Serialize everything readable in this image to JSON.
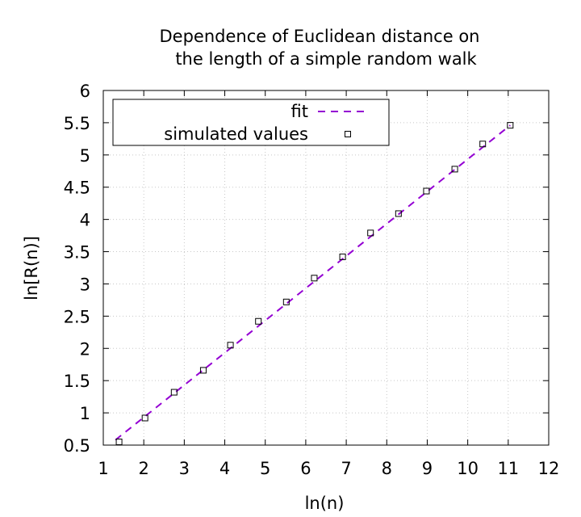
{
  "chart_data": {
    "type": "scatter",
    "title_lines": [
      "Dependence of Euclidean distance on",
      "the length of a simple random walk"
    ],
    "xlabel": "ln(n)",
    "ylabel": "ln[R(n)]",
    "xlim": [
      1,
      12
    ],
    "ylim": [
      0.5,
      6
    ],
    "xticks": [
      "1",
      "2",
      "3",
      "4",
      "5",
      "6",
      "7",
      "8",
      "9",
      "10",
      "11",
      "12"
    ],
    "yticks": [
      "0.5",
      "1",
      "1.5",
      "2",
      "2.5",
      "3",
      "3.5",
      "4",
      "4.5",
      "5",
      "5.5",
      "6"
    ],
    "grid": true,
    "legend_position": "top-left",
    "series": [
      {
        "name": "fit",
        "kind": "line",
        "style": "dashed",
        "color": "#9400d3",
        "x": [
          1.3,
          11.05
        ],
        "y": [
          0.58,
          5.46
        ]
      },
      {
        "name": "simulated values",
        "kind": "points",
        "marker": "square",
        "color": "#000000",
        "x": [
          1.39,
          2.03,
          2.75,
          3.47,
          4.14,
          4.83,
          5.52,
          6.21,
          6.91,
          7.6,
          8.29,
          8.98,
          9.68,
          10.37,
          11.05
        ],
        "y": [
          0.55,
          0.92,
          1.32,
          1.66,
          2.05,
          2.42,
          2.72,
          3.09,
          3.42,
          3.79,
          4.09,
          4.44,
          4.78,
          5.17,
          5.46
        ]
      }
    ]
  }
}
